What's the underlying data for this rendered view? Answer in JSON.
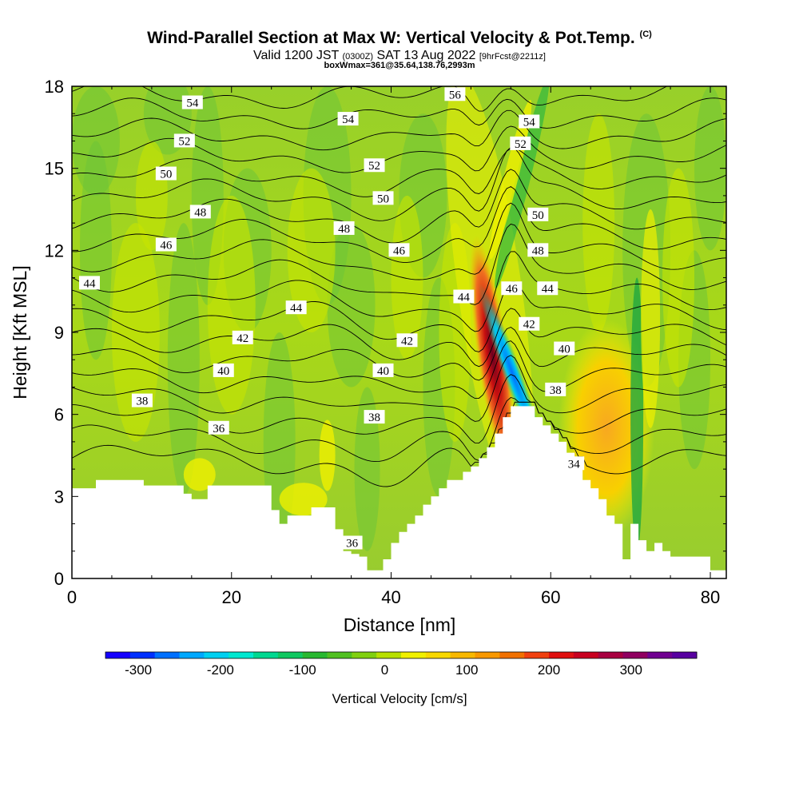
{
  "title": {
    "main": "Wind-Parallel Section at Max W: Vertical Velocity & Pot.Temp.",
    "copyright": "(C)",
    "line2_a": "Valid 1200 JST",
    "line2_b": "(0300Z)",
    "line2_c": "SAT 13 Aug 2022",
    "line2_d": "[9hrFcst@2211z]",
    "line3": "boxWmax=361@35.64,138.76,2993m"
  },
  "chart_data": {
    "type": "heatmap",
    "xlabel": "Distance [nm]",
    "ylabel": "Height [Kft MSL]",
    "xlim": [
      0,
      82
    ],
    "ylim": [
      0,
      18
    ],
    "xticks": [
      "0",
      "20",
      "40",
      "60",
      "80"
    ],
    "yticks": [
      "0",
      "3",
      "6",
      "9",
      "12",
      "15",
      "18"
    ],
    "colorbar": {
      "label": "Vertical Velocity [cm/s]",
      "range": [
        -340,
        380
      ],
      "ticks": [
        "-300",
        "-200",
        "-100",
        "0",
        "100",
        "200",
        "300"
      ],
      "colors": [
        "#1500ff",
        "#0030ff",
        "#0070ff",
        "#00a8ff",
        "#00d0f0",
        "#00e8d0",
        "#00d890",
        "#10c860",
        "#28b830",
        "#50c020",
        "#80d010",
        "#b8e000",
        "#f0f000",
        "#f8d800",
        "#f8b800",
        "#f89800",
        "#f07000",
        "#f04010",
        "#e01010",
        "#c80020",
        "#a80040",
        "#900060",
        "#700090",
        "#5800a0"
      ]
    },
    "terrain": [
      [
        0,
        3.3
      ],
      [
        3,
        3.3
      ],
      [
        3,
        3.6
      ],
      [
        9,
        3.6
      ],
      [
        9,
        3.4
      ],
      [
        14,
        3.4
      ],
      [
        14,
        3.1
      ],
      [
        15,
        3.1
      ],
      [
        15,
        2.9
      ],
      [
        17,
        2.9
      ],
      [
        17,
        3.4
      ],
      [
        25,
        3.4
      ],
      [
        25,
        2.5
      ],
      [
        26,
        2.5
      ],
      [
        26,
        2.0
      ],
      [
        27,
        2.0
      ],
      [
        27,
        2.3
      ],
      [
        30,
        2.3
      ],
      [
        30,
        2.6
      ],
      [
        33,
        2.6
      ],
      [
        33,
        1.8
      ],
      [
        34,
        1.8
      ],
      [
        34,
        1.0
      ],
      [
        35,
        1.0
      ],
      [
        35,
        0.9
      ],
      [
        36,
        0.9
      ],
      [
        36,
        0.8
      ],
      [
        37,
        0.8
      ],
      [
        37,
        0.3
      ],
      [
        39,
        0.3
      ],
      [
        39,
        0.7
      ],
      [
        40,
        0.7
      ],
      [
        40,
        1.3
      ],
      [
        41,
        1.3
      ],
      [
        41,
        1.7
      ],
      [
        42,
        1.7
      ],
      [
        42,
        2.0
      ],
      [
        43,
        2.0
      ],
      [
        43,
        2.3
      ],
      [
        44,
        2.3
      ],
      [
        44,
        2.7
      ],
      [
        45,
        2.7
      ],
      [
        45,
        3.0
      ],
      [
        46,
        3.0
      ],
      [
        46,
        3.3
      ],
      [
        47,
        3.3
      ],
      [
        47,
        3.6
      ],
      [
        49,
        3.6
      ],
      [
        49,
        3.9
      ],
      [
        50,
        3.9
      ],
      [
        50,
        4.1
      ],
      [
        51,
        4.1
      ],
      [
        51,
        4.4
      ],
      [
        52,
        4.4
      ],
      [
        52,
        4.8
      ],
      [
        53,
        4.8
      ],
      [
        53,
        5.3
      ],
      [
        54,
        5.3
      ],
      [
        54,
        5.9
      ],
      [
        55,
        5.9
      ],
      [
        55,
        6.3
      ],
      [
        58,
        6.3
      ],
      [
        58,
        5.9
      ],
      [
        59,
        5.9
      ],
      [
        59,
        5.6
      ],
      [
        60,
        5.6
      ],
      [
        60,
        5.3
      ],
      [
        61,
        5.3
      ],
      [
        61,
        5.0
      ],
      [
        62,
        5.0
      ],
      [
        62,
        4.6
      ],
      [
        63,
        4.6
      ],
      [
        63,
        4.3
      ],
      [
        64,
        4.3
      ],
      [
        64,
        3.6
      ],
      [
        65,
        3.6
      ],
      [
        65,
        3.3
      ],
      [
        66,
        3.3
      ],
      [
        66,
        2.9
      ],
      [
        67,
        2.9
      ],
      [
        67,
        2.3
      ],
      [
        68,
        2.3
      ],
      [
        68,
        2.0
      ],
      [
        69,
        2.0
      ],
      [
        69,
        0.7
      ],
      [
        70,
        0.7
      ],
      [
        70,
        2.0
      ],
      [
        71,
        2.0
      ],
      [
        71,
        1.4
      ],
      [
        72,
        1.4
      ],
      [
        72,
        1.0
      ],
      [
        73,
        1.0
      ],
      [
        73,
        1.3
      ],
      [
        74,
        1.3
      ],
      [
        74,
        1.0
      ],
      [
        75,
        1.0
      ],
      [
        75,
        0.8
      ],
      [
        80,
        0.8
      ],
      [
        80,
        0.3
      ],
      [
        82,
        0.3
      ]
    ],
    "isentrope_labels": [
      {
        "v": "54",
        "x": 15.1,
        "y": 17.4
      },
      {
        "v": "52",
        "x": 14.1,
        "y": 16.0
      },
      {
        "v": "50",
        "x": 11.8,
        "y": 14.8
      },
      {
        "v": "48",
        "x": 16.1,
        "y": 13.4
      },
      {
        "v": "46",
        "x": 11.8,
        "y": 12.2
      },
      {
        "v": "44",
        "x": 2.2,
        "y": 10.8
      },
      {
        "v": "42",
        "x": 21.4,
        "y": 8.8
      },
      {
        "v": "40",
        "x": 19.0,
        "y": 7.6
      },
      {
        "v": "38",
        "x": 8.8,
        "y": 6.5
      },
      {
        "v": "36",
        "x": 18.4,
        "y": 5.5
      },
      {
        "v": "54",
        "x": 34.6,
        "y": 16.8
      },
      {
        "v": "52",
        "x": 37.9,
        "y": 15.1
      },
      {
        "v": "50",
        "x": 39.0,
        "y": 13.9
      },
      {
        "v": "48",
        "x": 34.1,
        "y": 12.8
      },
      {
        "v": "46",
        "x": 41.0,
        "y": 12.0
      },
      {
        "v": "44",
        "x": 28.1,
        "y": 9.9
      },
      {
        "v": "42",
        "x": 42.0,
        "y": 8.7
      },
      {
        "v": "40",
        "x": 39.0,
        "y": 7.6
      },
      {
        "v": "38",
        "x": 37.9,
        "y": 5.9
      },
      {
        "v": "36",
        "x": 35.1,
        "y": 1.3
      },
      {
        "v": "56",
        "x": 48.0,
        "y": 17.7
      },
      {
        "v": "54",
        "x": 57.3,
        "y": 16.7
      },
      {
        "v": "52",
        "x": 56.2,
        "y": 15.9
      },
      {
        "v": "50",
        "x": 58.4,
        "y": 13.3
      },
      {
        "v": "48",
        "x": 58.4,
        "y": 12.0
      },
      {
        "v": "46",
        "x": 55.1,
        "y": 10.6
      },
      {
        "v": "44",
        "x": 49.1,
        "y": 10.3
      },
      {
        "v": "44",
        "x": 59.6,
        "y": 10.6
      },
      {
        "v": "42",
        "x": 57.3,
        "y": 9.3
      },
      {
        "v": "40",
        "x": 61.7,
        "y": 8.4
      },
      {
        "v": "38",
        "x": 60.6,
        "y": 6.9
      },
      {
        "v": "34",
        "x": 62.9,
        "y": 4.2
      }
    ]
  }
}
